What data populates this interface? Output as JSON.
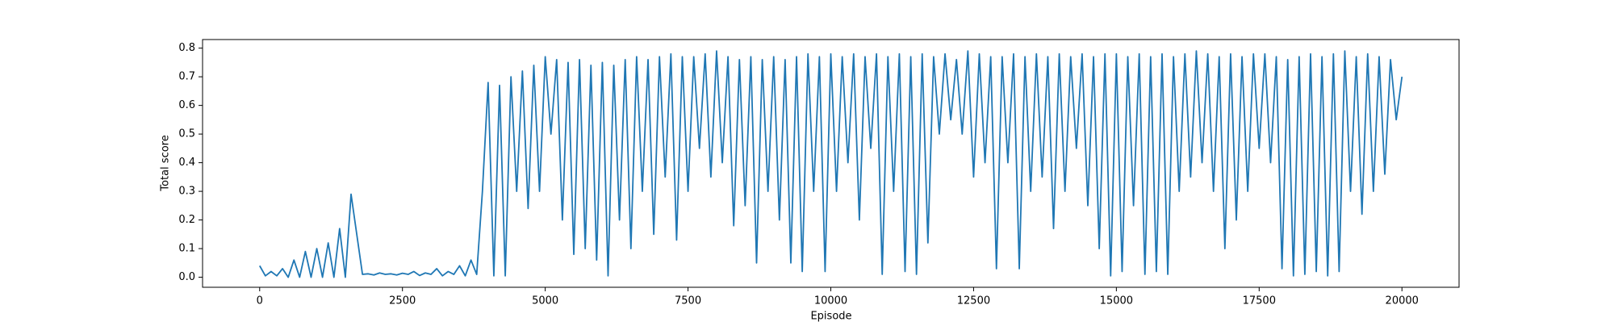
{
  "chart_data": {
    "type": "line",
    "x_label": "Episode",
    "y_label": "Total score",
    "x": [
      0,
      100,
      200,
      300,
      400,
      500,
      600,
      700,
      800,
      900,
      1000,
      1100,
      1200,
      1300,
      1400,
      1500,
      1600,
      1700,
      1800,
      1900,
      2000,
      2100,
      2200,
      2300,
      2400,
      2500,
      2600,
      2700,
      2800,
      2900,
      3000,
      3100,
      3200,
      3300,
      3400,
      3500,
      3600,
      3700,
      3800,
      3900,
      4000,
      4100,
      4200,
      4300,
      4400,
      4500,
      4600,
      4700,
      4800,
      4900,
      5000,
      5100,
      5200,
      5300,
      5400,
      5500,
      5600,
      5700,
      5800,
      5900,
      6000,
      6100,
      6200,
      6300,
      6400,
      6500,
      6600,
      6700,
      6800,
      6900,
      7000,
      7100,
      7200,
      7300,
      7400,
      7500,
      7600,
      7700,
      7800,
      7900,
      8000,
      8100,
      8200,
      8300,
      8400,
      8500,
      8600,
      8700,
      8800,
      8900,
      9000,
      9100,
      9200,
      9300,
      9400,
      9500,
      9600,
      9700,
      9800,
      9900,
      10000,
      10100,
      10200,
      10300,
      10400,
      10500,
      10600,
      10700,
      10800,
      10900,
      11000,
      11100,
      11200,
      11300,
      11400,
      11500,
      11600,
      11700,
      11800,
      11900,
      12000,
      12100,
      12200,
      12300,
      12400,
      12500,
      12600,
      12700,
      12800,
      12900,
      13000,
      13100,
      13200,
      13300,
      13400,
      13500,
      13600,
      13700,
      13800,
      13900,
      14000,
      14100,
      14200,
      14300,
      14400,
      14500,
      14600,
      14700,
      14800,
      14900,
      15000,
      15100,
      15200,
      15300,
      15400,
      15500,
      15600,
      15700,
      15800,
      15900,
      16000,
      16100,
      16200,
      16300,
      16400,
      16500,
      16600,
      16700,
      16800,
      16900,
      17000,
      17100,
      17200,
      17300,
      17400,
      17500,
      17600,
      17700,
      17800,
      17900,
      18000,
      18100,
      18200,
      18300,
      18400,
      18500,
      18600,
      18700,
      18800,
      18900,
      19000,
      19100,
      19200,
      19300,
      19400,
      19500,
      19600,
      19700,
      19800,
      19900,
      20000
    ],
    "series": [
      {
        "color": "#1f77b4",
        "values": [
          0.04,
          0.005,
          0.02,
          0.005,
          0.03,
          0.0,
          0.06,
          0.0,
          0.09,
          0.0,
          0.1,
          0.0,
          0.12,
          0.0,
          0.17,
          0.0,
          0.29,
          0.15,
          0.01,
          0.012,
          0.008,
          0.015,
          0.01,
          0.012,
          0.008,
          0.014,
          0.01,
          0.02,
          0.006,
          0.015,
          0.01,
          0.03,
          0.005,
          0.02,
          0.01,
          0.04,
          0.005,
          0.06,
          0.01,
          0.3,
          0.68,
          0.005,
          0.67,
          0.005,
          0.7,
          0.3,
          0.72,
          0.24,
          0.74,
          0.3,
          0.77,
          0.5,
          0.76,
          0.2,
          0.75,
          0.08,
          0.76,
          0.1,
          0.74,
          0.06,
          0.75,
          0.005,
          0.74,
          0.2,
          0.76,
          0.1,
          0.77,
          0.3,
          0.76,
          0.15,
          0.77,
          0.35,
          0.78,
          0.13,
          0.77,
          0.3,
          0.77,
          0.45,
          0.78,
          0.35,
          0.79,
          0.4,
          0.77,
          0.18,
          0.76,
          0.25,
          0.77,
          0.05,
          0.76,
          0.3,
          0.77,
          0.2,
          0.76,
          0.05,
          0.77,
          0.02,
          0.78,
          0.3,
          0.77,
          0.02,
          0.78,
          0.3,
          0.77,
          0.4,
          0.78,
          0.2,
          0.77,
          0.45,
          0.78,
          0.01,
          0.77,
          0.3,
          0.78,
          0.02,
          0.77,
          0.01,
          0.78,
          0.12,
          0.77,
          0.5,
          0.78,
          0.55,
          0.76,
          0.5,
          0.79,
          0.35,
          0.78,
          0.4,
          0.77,
          0.03,
          0.77,
          0.4,
          0.78,
          0.03,
          0.77,
          0.3,
          0.78,
          0.35,
          0.77,
          0.17,
          0.78,
          0.3,
          0.77,
          0.45,
          0.78,
          0.25,
          0.77,
          0.1,
          0.78,
          0.005,
          0.78,
          0.02,
          0.77,
          0.25,
          0.78,
          0.01,
          0.77,
          0.02,
          0.78,
          0.01,
          0.77,
          0.3,
          0.78,
          0.35,
          0.79,
          0.4,
          0.78,
          0.3,
          0.77,
          0.1,
          0.78,
          0.2,
          0.77,
          0.3,
          0.78,
          0.45,
          0.78,
          0.4,
          0.77,
          0.03,
          0.76,
          0.005,
          0.77,
          0.01,
          0.78,
          0.02,
          0.77,
          0.005,
          0.78,
          0.02,
          0.79,
          0.3,
          0.77,
          0.22,
          0.78,
          0.3,
          0.77,
          0.36,
          0.76,
          0.55,
          0.7
        ]
      }
    ],
    "xlim": [
      -1000,
      21000
    ],
    "xticks": [
      0,
      2500,
      5000,
      7500,
      10000,
      12500,
      15000,
      17500,
      20000
    ],
    "ylim": [
      -0.035,
      0.83
    ],
    "yticks": [
      {
        "value": 0,
        "label": "0.0"
      },
      0.1,
      0.2,
      0.3,
      0.4,
      0.5,
      0.6,
      0.7,
      0.8
    ]
  }
}
